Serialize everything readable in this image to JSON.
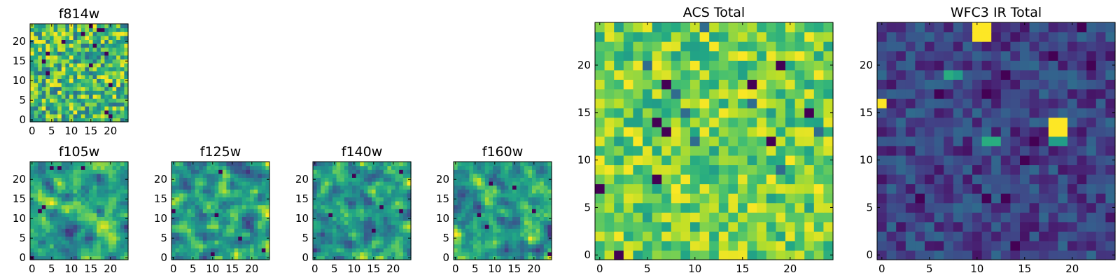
{
  "chart_data": [
    {
      "type": "heatmap",
      "title": "f814w",
      "grid_size": 25,
      "xticks": [
        0,
        5,
        10,
        15,
        20
      ],
      "yticks": [
        0,
        5,
        10,
        15,
        20
      ],
      "colormap": "viridis",
      "seed": 11,
      "pattern": "noise",
      "values": []
    },
    {
      "type": "heatmap",
      "title": "f105w",
      "grid_size": 25,
      "xticks": [
        0,
        5,
        10,
        15,
        20
      ],
      "yticks": [
        0,
        5,
        10,
        15,
        20
      ],
      "colormap": "viridis",
      "seed": 21,
      "pattern": "smooth",
      "values": []
    },
    {
      "type": "heatmap",
      "title": "f125w",
      "grid_size": 25,
      "xticks": [
        0,
        5,
        10,
        15,
        20
      ],
      "yticks": [
        0,
        5,
        10,
        15,
        20
      ],
      "colormap": "viridis",
      "seed": 31,
      "pattern": "smooth",
      "values": []
    },
    {
      "type": "heatmap",
      "title": "f140w",
      "grid_size": 25,
      "xticks": [
        0,
        5,
        10,
        15,
        20
      ],
      "yticks": [
        0,
        5,
        10,
        15,
        20
      ],
      "colormap": "viridis",
      "seed": 41,
      "pattern": "smooth",
      "values": []
    },
    {
      "type": "heatmap",
      "title": "f160w",
      "grid_size": 25,
      "xticks": [
        0,
        5,
        10,
        15,
        20
      ],
      "yticks": [
        0,
        5,
        10,
        15,
        20
      ],
      "colormap": "viridis",
      "seed": 51,
      "pattern": "smooth",
      "values": []
    },
    {
      "type": "heatmap",
      "title": "ACS Total",
      "grid_size": 25,
      "xticks": [
        0,
        5,
        10,
        15,
        20
      ],
      "yticks": [
        0,
        5,
        10,
        15,
        20
      ],
      "colormap": "viridis",
      "seed": 61,
      "pattern": "acs",
      "values": []
    },
    {
      "type": "heatmap",
      "title": "WFC3 IR Total",
      "grid_size": 25,
      "xticks": [
        0,
        5,
        10,
        15,
        20
      ],
      "yticks": [
        0,
        5,
        10,
        15,
        20
      ],
      "colormap": "viridis",
      "seed": 71,
      "pattern": "ir",
      "values": []
    }
  ]
}
